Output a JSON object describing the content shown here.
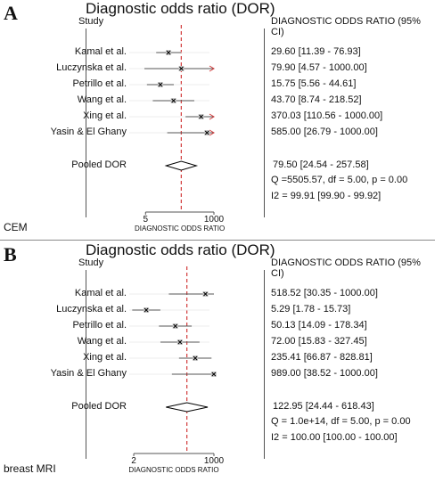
{
  "chart_data": [
    {
      "type": "forest",
      "panel": "A",
      "title": "Diagnostic odds ratio (DOR)",
      "study_header": "Study",
      "result_header": "DIAGNOSTIC ODDS RATIO (95% CI)",
      "xlabel": "DIAGNOSTIC ODDS RATIO",
      "xscale": "log",
      "xlim": [
        1,
        1000
      ],
      "ticks": [
        {
          "value": 5,
          "label": "5"
        },
        {
          "value": 1000,
          "label": "1000"
        }
      ],
      "pooled_line": 79.5,
      "studies": [
        {
          "study": "Kamal et al.",
          "dor": 29.6,
          "lo": 11.39,
          "hi": 76.93,
          "text": "29.60 [11.39 - 76.93]"
        },
        {
          "study": "Luczynska et al.",
          "dor": 79.9,
          "lo": 4.57,
          "hi": 1000,
          "text": "79.90 [4.57 - 1000.00]"
        },
        {
          "study": "Petrillo et al.",
          "dor": 15.75,
          "lo": 5.56,
          "hi": 44.61,
          "text": "15.75 [5.56 - 44.61]"
        },
        {
          "study": "Wang et al.",
          "dor": 43.7,
          "lo": 8.74,
          "hi": 218.52,
          "text": "43.70 [8.74 - 218.52]"
        },
        {
          "study": "Xing et al.",
          "dor": 370.03,
          "lo": 110.56,
          "hi": 1000,
          "text": "370.03 [110.56 - 1000.00]"
        },
        {
          "study": "Yasin & El Ghany",
          "dor": 585.0,
          "lo": 26.79,
          "hi": 1000,
          "text": "585.00 [26.79 - 1000.00]"
        }
      ],
      "pooled": {
        "label": "Pooled DOR",
        "dor": 79.5,
        "lo": 24.54,
        "hi": 257.58,
        "text": "79.50 [24.54 - 257.58]"
      },
      "heterogeneity": "Q =5505.57, df = 5.00, p =  0.00",
      "i2": "I2 = 99.91 [99.90 - 99.92]",
      "caption": "CEM"
    },
    {
      "type": "forest",
      "panel": "B",
      "title": "Diagnostic odds ratio (DOR)",
      "study_header": "Study",
      "result_header": "DIAGNOSTIC ODDS RATIO (95% CI)",
      "xlabel": "DIAGNOSTIC ODDS RATIO",
      "xscale": "log",
      "xlim": [
        1,
        1000
      ],
      "ticks": [
        {
          "value": 2,
          "label": "2"
        },
        {
          "value": 1000,
          "label": "1000"
        }
      ],
      "pooled_line": 122.95,
      "studies": [
        {
          "study": "Kamal et al.",
          "dor": 518.52,
          "lo": 30.35,
          "hi": 1000,
          "text": "518.52 [30.35 - 1000.00]"
        },
        {
          "study": "Luczynska et al.",
          "dor": 5.29,
          "lo": 1.78,
          "hi": 15.73,
          "text": "5.29 [1.78 - 15.73]"
        },
        {
          "study": "Petrillo et al.",
          "dor": 50.13,
          "lo": 14.09,
          "hi": 178.34,
          "text": "50.13 [14.09 - 178.34]"
        },
        {
          "study": "Wang et al.",
          "dor": 72.0,
          "lo": 15.83,
          "hi": 327.45,
          "text": "72.00 [15.83 - 327.45]"
        },
        {
          "study": "Xing et al.",
          "dor": 235.41,
          "lo": 66.87,
          "hi": 828.81,
          "text": "235.41 [66.87 - 828.81]"
        },
        {
          "study": "Yasin & El Ghany",
          "dor": 989.0,
          "lo": 38.52,
          "hi": 1000,
          "text": "989.00 [38.52 - 1000.00]"
        }
      ],
      "pooled": {
        "label": "Pooled DOR",
        "dor": 122.95,
        "lo": 24.44,
        "hi": 618.43,
        "text": "122.95 [24.44 - 618.43]"
      },
      "heterogeneity": "Q = 1.0e+14, df = 5.00, p =  0.00",
      "i2": "I2 = 100.00 [100.00 - 100.00]",
      "caption": "breast MRI"
    }
  ],
  "colors": {
    "ref_line": "#d23c3c",
    "ci_line": "#555555",
    "text": "#111111",
    "frame": "#555555"
  }
}
